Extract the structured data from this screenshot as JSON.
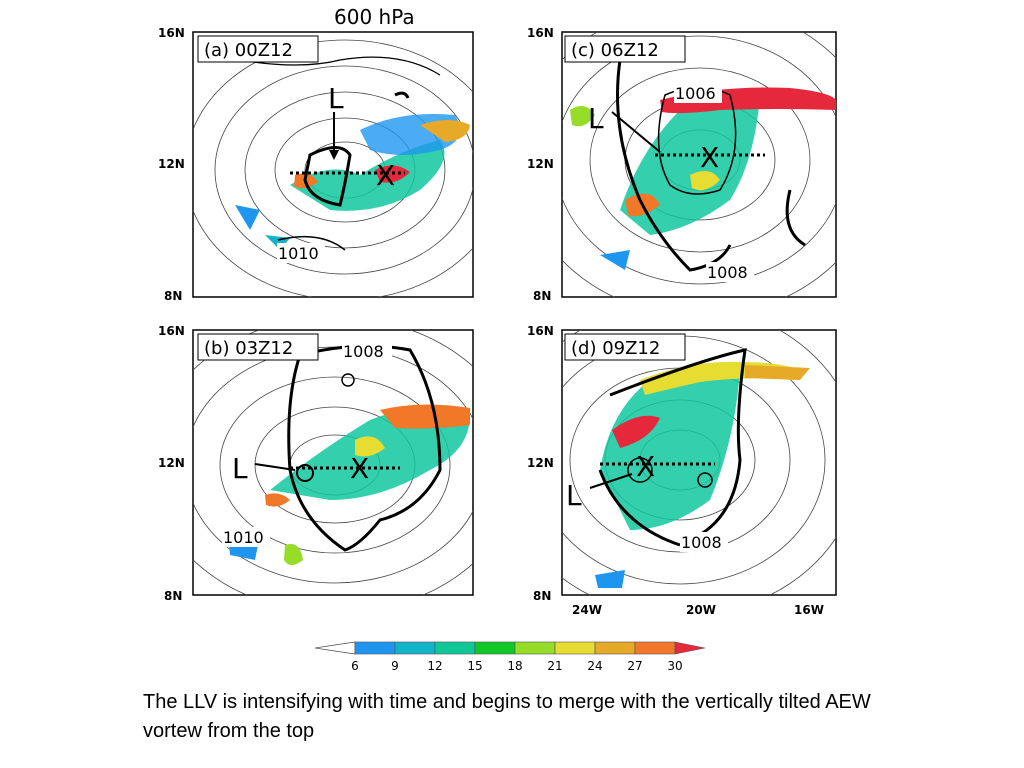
{
  "figure": {
    "super_title": "600 hPa",
    "lat_labels": [
      "16N",
      "12N",
      "8N"
    ],
    "lon_labels": [
      "24W",
      "20W",
      "16W"
    ],
    "panels": [
      {
        "id": "a",
        "label": "(a) 00Z12",
        "contour_label": "1010",
        "low_marker": "L",
        "center_marker": "X"
      },
      {
        "id": "b",
        "label": "(b) 03Z12",
        "contour_label_1": "1008",
        "contour_label_2": "1010",
        "low_marker": "L",
        "center_marker": "X"
      },
      {
        "id": "c",
        "label": "(c) 06Z12",
        "contour_label_1": "1006",
        "contour_label_2": "1008",
        "low_marker": "L",
        "center_marker": "X"
      },
      {
        "id": "d",
        "label": "(d) 09Z12",
        "contour_label": "1008",
        "low_marker": "L",
        "center_marker": "X"
      }
    ],
    "colorbar": {
      "ticks": [
        "6",
        "9",
        "12",
        "15",
        "18",
        "21",
        "24",
        "27",
        "30"
      ],
      "colors": [
        "#1e96f0",
        "#10b4c8",
        "#10c896",
        "#10c828",
        "#96dc28",
        "#e6dc32",
        "#e6aa28",
        "#f07828",
        "#e6283c"
      ]
    }
  },
  "caption": "The LLV is intensifying with time and begins to merge with the vertically tilted AEW vortew from the top"
}
